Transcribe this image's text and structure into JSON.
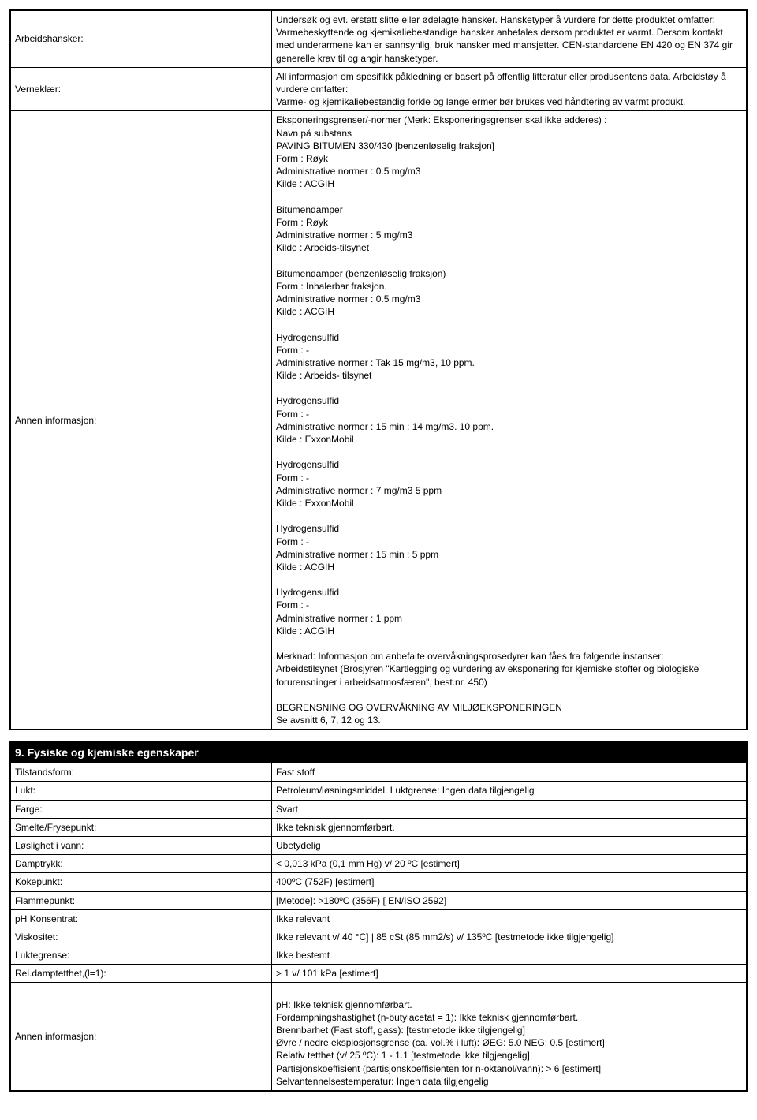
{
  "table1": {
    "rows": [
      {
        "label": "Arbeidshansker:",
        "value": "Undersøk og evt. erstatt slitte eller ødelagte hansker. Hansketyper å vurdere for dette produktet omfatter:\nVarmebeskyttende og kjemikaliebestandige hansker anbefales dersom produktet er varmt. Dersom kontakt med underarmene kan er sannsynlig, bruk hansker med mansjetter. CEN-standardene EN 420 og EN 374 gir generelle krav til og angir hansketyper."
      },
      {
        "label": "Verneklær:",
        "value": "All informasjon om spesifikk påkledning er basert på offentlig litteratur eller produsentens data. Arbeidstøy å vurdere omfatter:\nVarme- og kjemikaliebestandig forkle og lange ermer bør brukes ved håndtering av varmt produkt."
      },
      {
        "label": "Annen informasjon:",
        "value": "Eksponeringsgrenser/-normer (Merk: Eksponeringsgrenser skal ikke adderes) :\nNavn på substans\nPAVING BITUMEN 330/430 [benzenløselig fraksjon]\nForm : Røyk\nAdministrative normer : 0.5 mg/m3\nKilde : ACGIH\n\nBitumendamper\nForm : Røyk\nAdministrative normer : 5 mg/m3\nKilde : Arbeids-tilsynet\n\nBitumendamper (benzenløselig fraksjon)\nForm : Inhalerbar fraksjon.\nAdministrative normer : 0.5 mg/m3\nKilde : ACGIH\n\nHydrogensulfid\nForm : -\nAdministrative normer : Tak 15 mg/m3, 10 ppm.\nKilde : Arbeids- tilsynet\n\nHydrogensulfid\nForm : -\nAdministrative normer : 15 min : 14 mg/m3. 10 ppm.\nKilde : ExxonMobil\n\nHydrogensulfid\nForm : -\nAdministrative normer : 7 mg/m3 5 ppm\nKilde : ExxonMobil\n\nHydrogensulfid\nForm : -\nAdministrative normer : 15 min : 5 ppm\nKilde : ACGIH\n\nHydrogensulfid\nForm : -\nAdministrative normer : 1 ppm\nKilde : ACGIH\n\nMerknad: Informasjon om anbefalte overvåkningsprosedyrer kan fåes fra følgende instanser:\nArbeidstilsynet (Brosjyren \"Kartlegging og vurdering av eksponering for kjemiske stoffer og biologiske forurensninger i arbeidsatmosfæren\", best.nr. 450)\n\nBEGRENSNING OG OVERVÅKNING AV MILJØEKSPONERINGEN\nSe avsnitt 6, 7, 12 og 13."
      }
    ]
  },
  "section9": {
    "header": "9. Fysiske og kjemiske egenskaper",
    "rows": [
      {
        "label": "Tilstandsform:",
        "value": "Fast stoff"
      },
      {
        "label": "Lukt:",
        "value": "Petroleum/løsningsmiddel. Luktgrense: Ingen data tilgjengelig"
      },
      {
        "label": "Farge:",
        "value": "Svart"
      },
      {
        "label": "Smelte/Frysepunkt:",
        "value": "Ikke teknisk gjennomførbart."
      },
      {
        "label": "Løslighet i vann:",
        "value": "Ubetydelig"
      },
      {
        "label": "Damptrykk:",
        "value": "< 0,013 kPa (0,1 mm Hg) v/ 20 ºC [estimert]"
      },
      {
        "label": "Kokepunkt:",
        "value": "400ºC (752F) [estimert]"
      },
      {
        "label": "Flammepunkt:",
        "value": "[Metode]: >180ºC (356F) [ EN/ISO 2592]"
      },
      {
        "label": "pH Konsentrat:",
        "value": "Ikke relevant"
      },
      {
        "label": "Viskositet:",
        "value": "Ikke relevant v/ 40 °C] | 85 cSt (85 mm2/s) v/ 135ºC [testmetode ikke tilgjengelig]"
      },
      {
        "label": "Luktegrense:",
        "value": "Ikke bestemt"
      },
      {
        "label": "Rel.damptetthet,(l=1):",
        "value": "> 1 v/ 101 kPa [estimert]"
      },
      {
        "label": "Annen informasjon:",
        "value": "\npH: Ikke teknisk gjennomførbart.\nFordampningshastighet (n-butylacetat = 1): Ikke teknisk gjennomførbart.\nBrennbarhet (Fast stoff, gass): [testmetode ikke tilgjengelig]\nØvre / nedre eksplosjonsgrense (ca. vol.% i luft): ØEG: 5.0 NEG: 0.5 [estimert]\nRelativ tetthet (v/ 25 ºC): 1 - 1.1 [testmetode ikke tilgjengelig]\nPartisjonskoeffisient (partisjonskoeffisienten for n-oktanol/vann): > 6 [estimert]\nSelvantennelsestemperatur: Ingen data tilgjengelig"
      }
    ]
  }
}
